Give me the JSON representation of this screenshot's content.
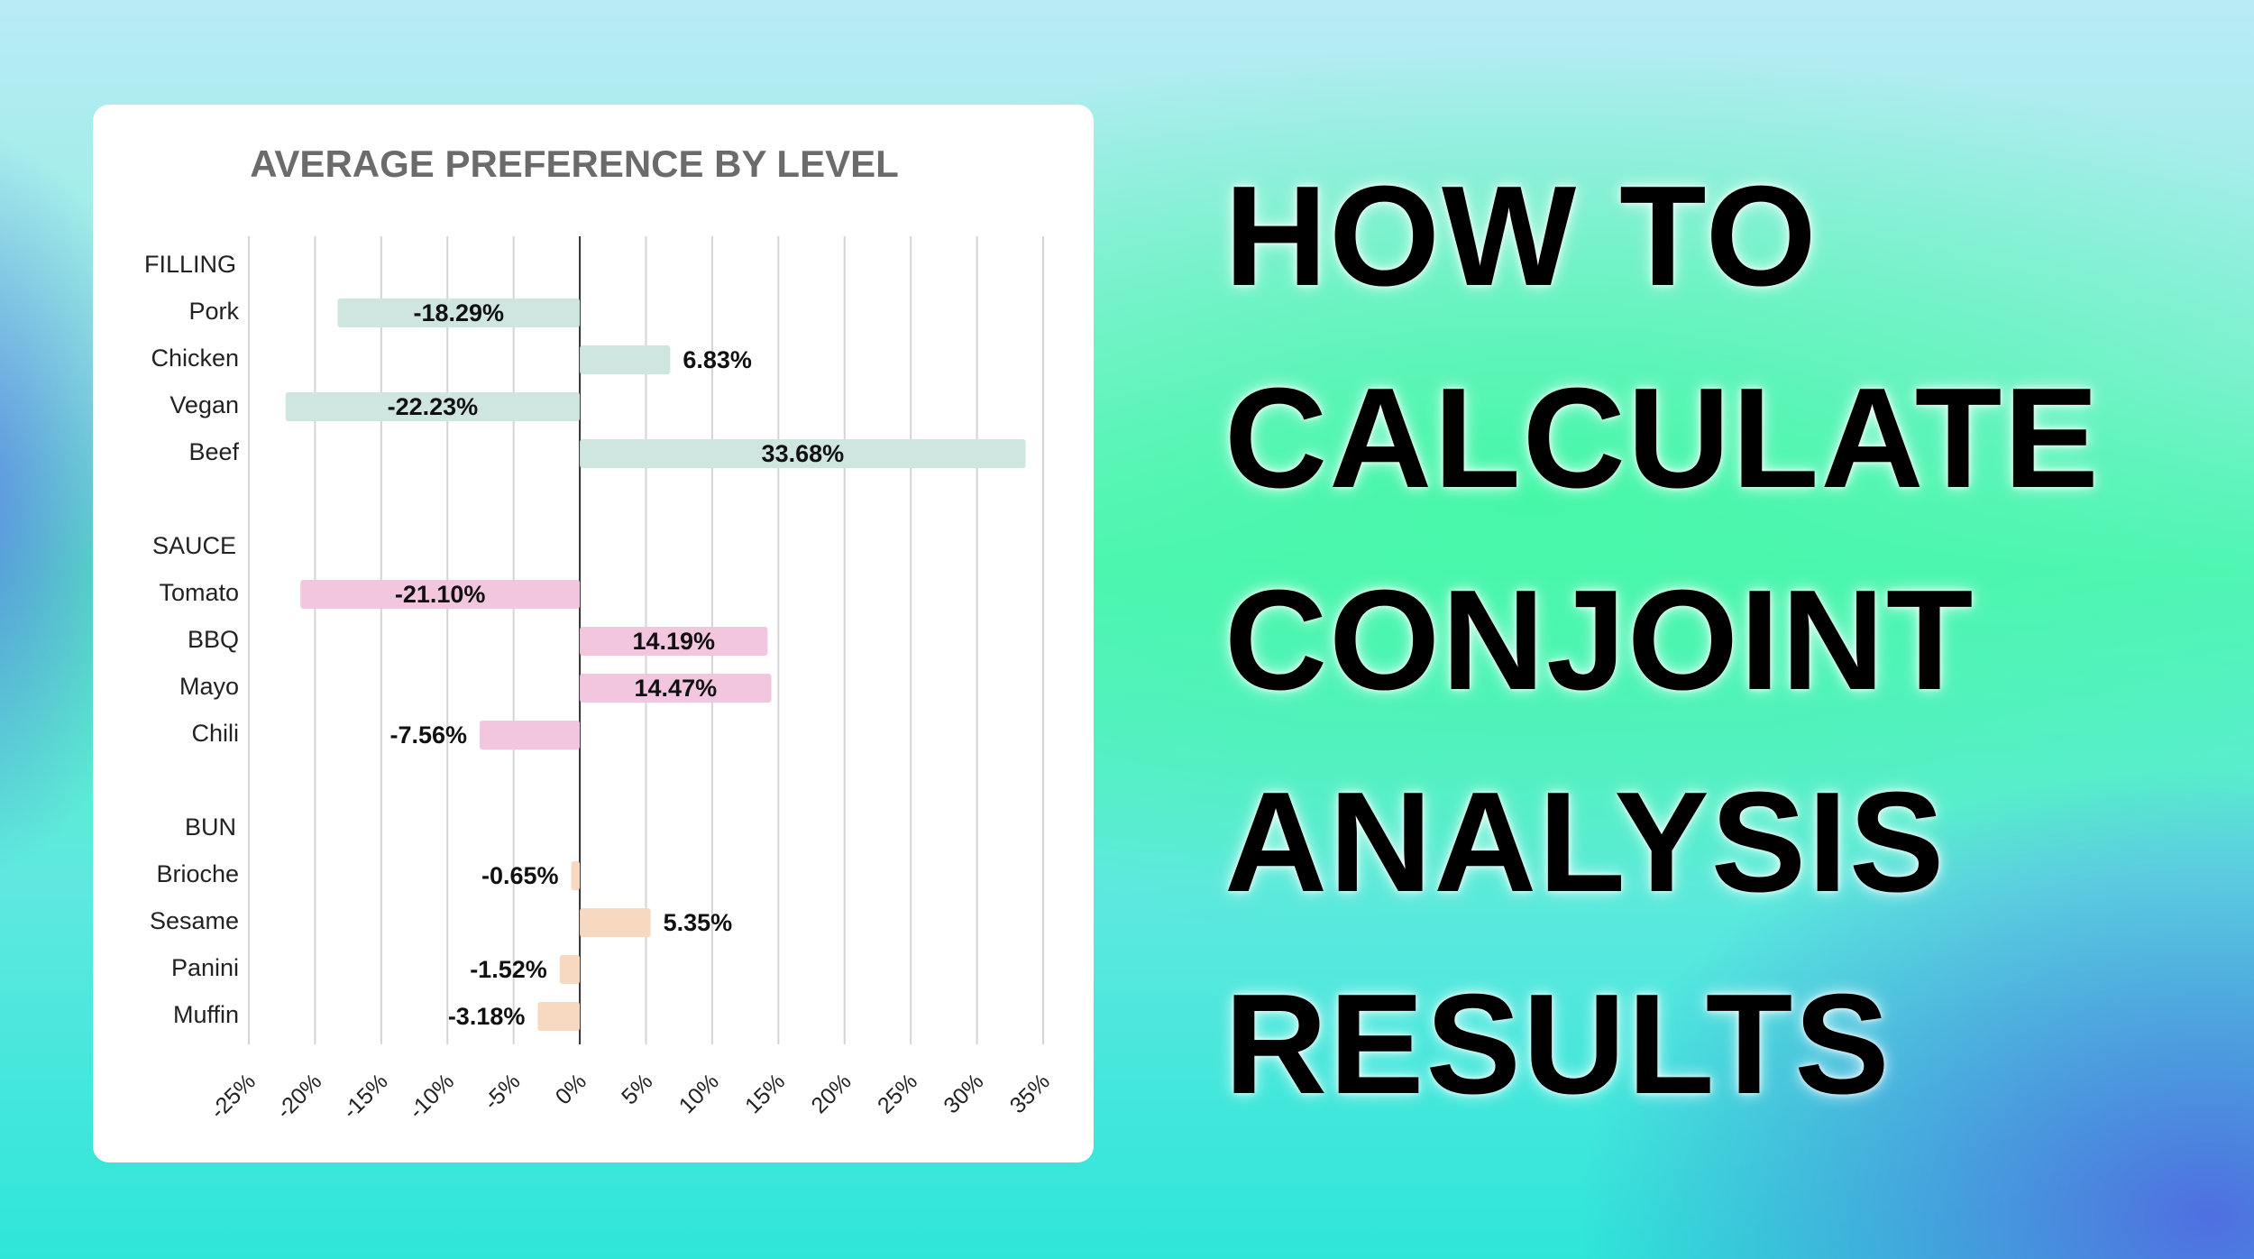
{
  "chart_data": {
    "type": "bar",
    "orientation": "horizontal",
    "title": "AVERAGE PREFERENCE BY LEVEL",
    "groups": [
      {
        "name": "FILLING",
        "color": "#cfe5df",
        "categories": [
          "Pork",
          "Chicken",
          "Vegan",
          "Beef"
        ],
        "values": [
          -18.29,
          6.83,
          -22.23,
          33.68
        ],
        "value_labels": [
          "-18.29%",
          "6.83%",
          "-22.23%",
          "33.68%"
        ]
      },
      {
        "name": "SAUCE",
        "color": "#f2c6df",
        "categories": [
          "Tomato",
          "BBQ",
          "Mayo",
          "Chili"
        ],
        "values": [
          -21.1,
          14.19,
          14.47,
          -7.56
        ],
        "value_labels": [
          "-21.10%",
          "14.19%",
          "14.47%",
          "-7.56%"
        ]
      },
      {
        "name": "BUN",
        "color": "#f7d8c0",
        "categories": [
          "Brioche",
          "Sesame",
          "Panini",
          "Muffin"
        ],
        "values": [
          -0.65,
          5.35,
          -1.52,
          -3.18
        ],
        "value_labels": [
          "-0.65%",
          "5.35%",
          "-1.52%",
          "-3.18%"
        ]
      }
    ],
    "xlim": [
      -25,
      35
    ],
    "xticks": [
      {
        "value": -25,
        "label": "-25%"
      },
      {
        "value": -20,
        "label": "-20%"
      },
      {
        "value": -15,
        "label": "-15%"
      },
      {
        "value": -10,
        "label": "-10%"
      },
      {
        "value": -5,
        "label": "-5%"
      },
      {
        "value": 0,
        "label": "0%"
      },
      {
        "value": 5,
        "label": "5%"
      },
      {
        "value": 10,
        "label": "10%"
      },
      {
        "value": 15,
        "label": "15%"
      },
      {
        "value": 20,
        "label": "20%"
      },
      {
        "value": 25,
        "label": "25%"
      },
      {
        "value": 30,
        "label": "30%"
      },
      {
        "value": 35,
        "label": "35%"
      }
    ],
    "grid": true
  },
  "headline": {
    "lines": [
      "HOW TO",
      "CALCULATE",
      "CONJOINT",
      "ANALYSIS",
      "RESULTS"
    ]
  }
}
